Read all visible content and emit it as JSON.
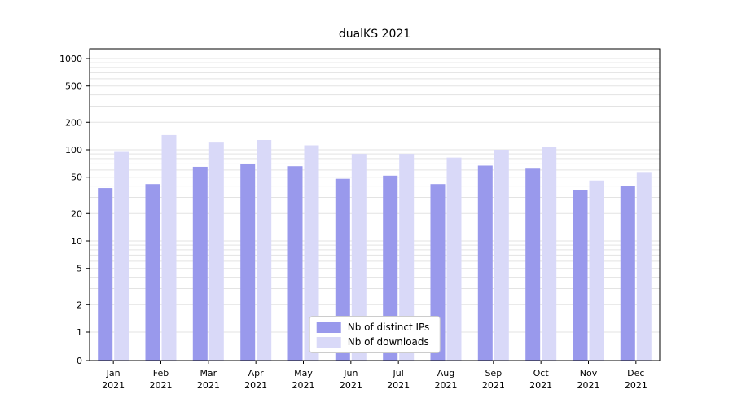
{
  "chart_data": {
    "type": "bar",
    "title": "dualKS 2021",
    "year": "2021",
    "categories": [
      "Jan",
      "Feb",
      "Mar",
      "Apr",
      "May",
      "Jun",
      "Jul",
      "Aug",
      "Sep",
      "Oct",
      "Nov",
      "Dec"
    ],
    "series": [
      {
        "name": "Nb of distinct IPs",
        "color": "#9999ec",
        "values": [
          38,
          42,
          65,
          70,
          66,
          48,
          52,
          42,
          67,
          62,
          36,
          40
        ]
      },
      {
        "name": "Nb of downloads",
        "color": "#d9d9f8",
        "values": [
          95,
          145,
          120,
          128,
          112,
          90,
          90,
          82,
          100,
          108,
          46,
          57
        ]
      }
    ],
    "y_ticks": [
      0,
      1,
      2,
      5,
      10,
      20,
      50,
      100,
      200,
      500,
      1000
    ],
    "y_scale": "log",
    "ylim": [
      0,
      1000
    ],
    "grid": "horizontal",
    "legend_position": "lower center"
  }
}
